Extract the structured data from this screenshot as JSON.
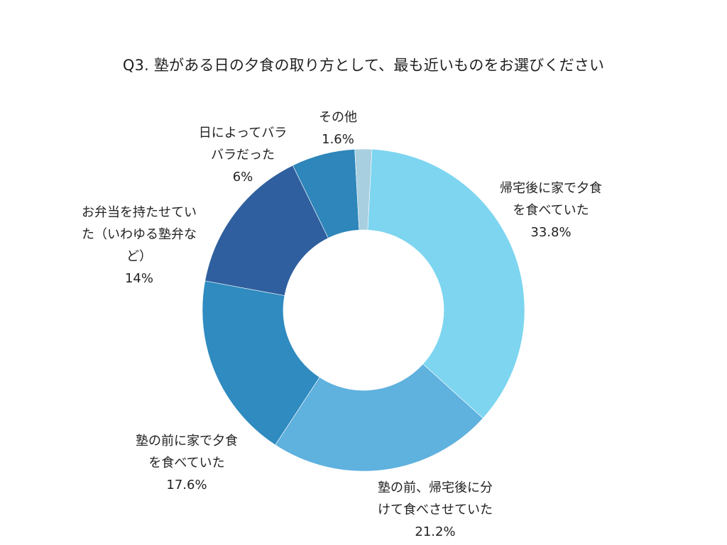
{
  "title": "Q3. 塾がある日の夕食の取り方として、最も近いものをお選びください",
  "chart_data": {
    "type": "pie",
    "variant": "donut",
    "title": "Q3. 塾がある日の夕食の取り方として、最も近いものをお選びください",
    "start_angle_deg": 3,
    "direction": "clockwise",
    "inner_radius_ratio": 0.5,
    "categories": [
      "帰宅後に家で夕食を食べていた",
      "塾の前、帰宅後に分けて食べさせていた",
      "塾の前に家で夕食を食べていた",
      "お弁当を持たせていた（いわゆる塾弁など）",
      "日によってバラバラだった",
      "その他"
    ],
    "values": [
      33.8,
      21.2,
      17.6,
      14,
      6,
      1.6
    ],
    "unit": "%",
    "colors": [
      "#7dd5f0",
      "#5fb1de",
      "#2f8bc0",
      "#2f5f9e",
      "#2e86ba",
      "#52a6dd",
      "#a8cfe0"
    ],
    "slice_colors": {
      "帰宅後に家で夕食を食べていた": "#7dd5f0",
      "塾の前、帰宅後に分けて食べさせていた": "#5fb1de",
      "塾の前に家で夕食を食べていた": "#2f8bc0",
      "お弁当を持たせていた（いわゆる塾弁など）": "#2f5f9e",
      "日によってバラバラだった": "#2e86ba",
      "その他": "#a8cfe0"
    },
    "legend": "none (labels placed outside slices)"
  },
  "labels": [
    {
      "lines": [
        "帰宅後に家で夕食",
        "を食べていた"
      ],
      "value": "33.8%"
    },
    {
      "lines": [
        "塾の前、帰宅後に分",
        "けて食べさせていた"
      ],
      "value": "21.2%"
    },
    {
      "lines": [
        "塾の前に家で夕食",
        "を食べていた"
      ],
      "value": "17.6%"
    },
    {
      "lines": [
        "お弁当を持たせてい",
        "た（いわゆる塾弁な",
        "ど）"
      ],
      "value": "14%"
    },
    {
      "lines": [
        "日によってバラ",
        "バラだった"
      ],
      "value": "6%"
    },
    {
      "lines": [
        "その他"
      ],
      "value": "1.6%"
    }
  ]
}
